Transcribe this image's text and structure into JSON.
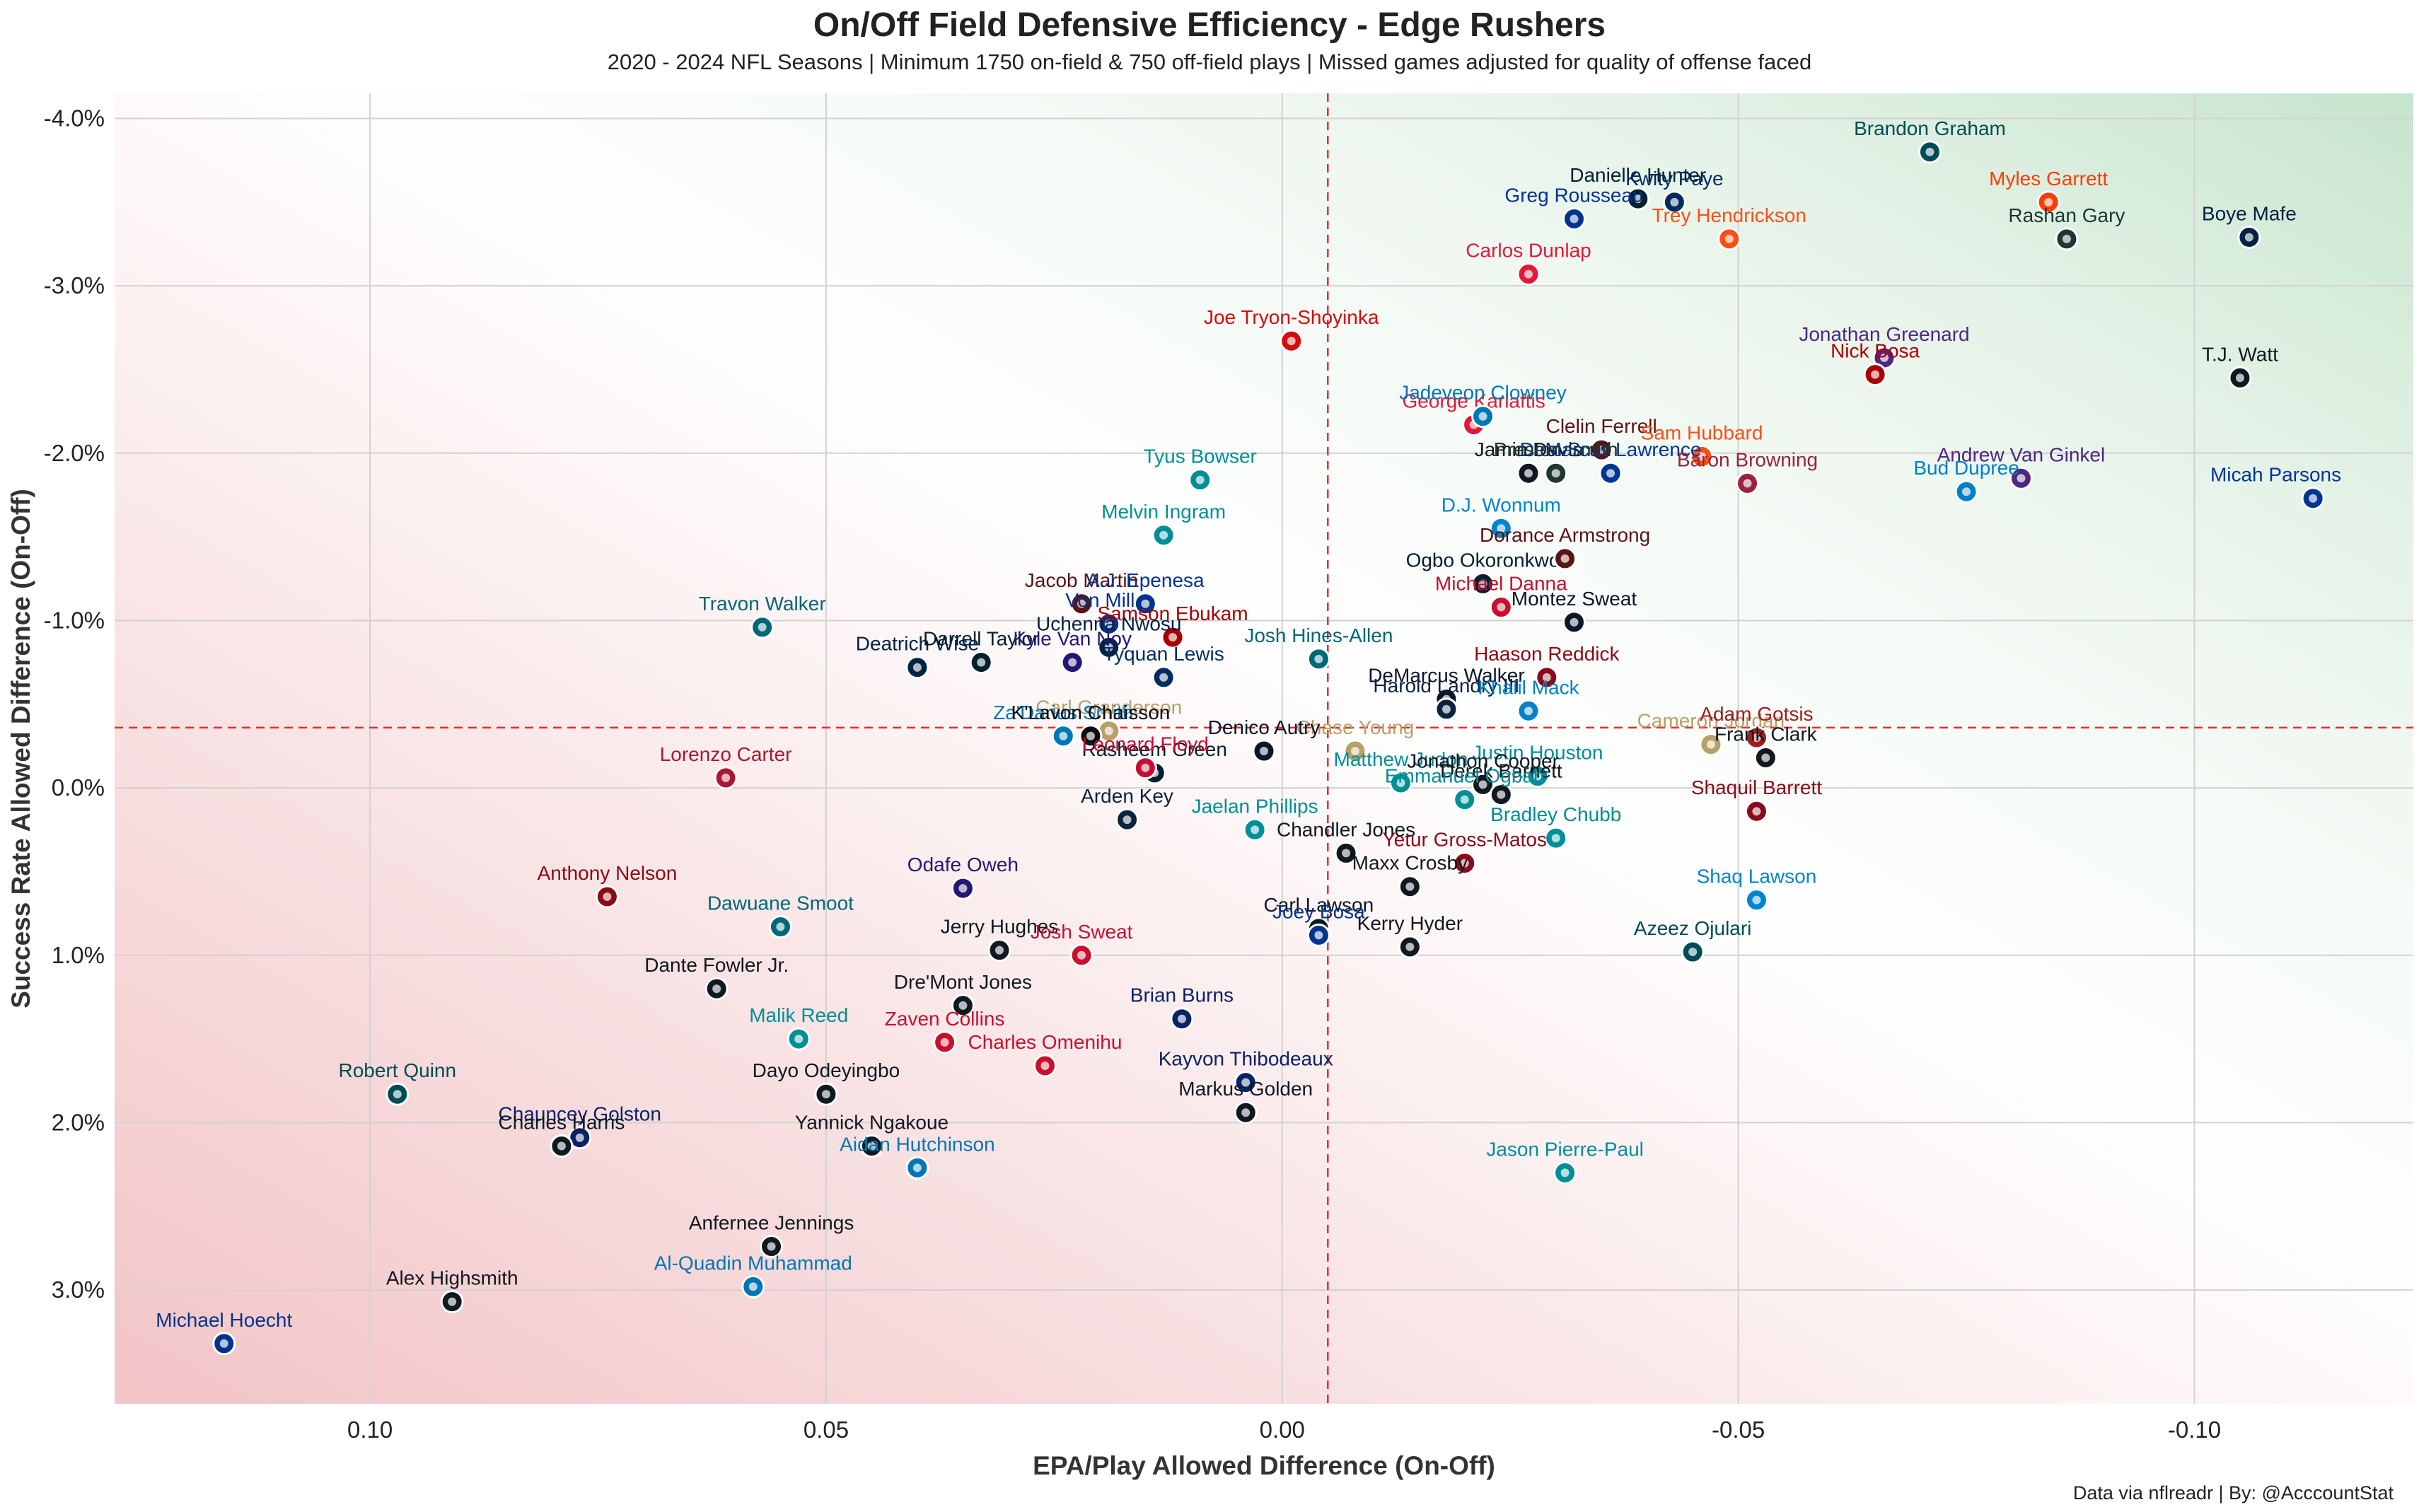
{
  "title": "On/Off Field Defensive Efficiency - Edge Rushers",
  "subtitle": "2020 - 2024 NFL Seasons | Minimum 1750 on-field & 750 off-field plays | Missed games adjusted for quality of offense faced",
  "credit": "Data via nflreadr | By: @AcccountStat",
  "chart_data": {
    "type": "scatter",
    "xlabel": "EPA/Play Allowed Difference (On-Off)",
    "ylabel": "Success Rate Allowed Difference (On-Off)",
    "xlim": [
      0.128,
      -0.124
    ],
    "ylim": [
      3.68,
      -4.15
    ],
    "x_ticks": [
      {
        "value": 0.1,
        "label": "0.10"
      },
      {
        "value": 0.05,
        "label": "0.05"
      },
      {
        "value": 0.0,
        "label": "0.00"
      },
      {
        "value": -0.05,
        "label": "-0.05"
      },
      {
        "value": -0.1,
        "label": "-0.10"
      }
    ],
    "y_ticks": [
      {
        "value": -4.0,
        "label": "-4.0%"
      },
      {
        "value": -3.0,
        "label": "-3.0%"
      },
      {
        "value": -2.0,
        "label": "-2.0%"
      },
      {
        "value": -1.0,
        "label": "-1.0%"
      },
      {
        "value": 0.0,
        "label": "0.0%"
      },
      {
        "value": 1.0,
        "label": "1.0%"
      },
      {
        "value": 2.0,
        "label": "2.0%"
      },
      {
        "value": 3.0,
        "label": "3.0%"
      }
    ],
    "reference_lines": {
      "x": -0.005,
      "y": -0.36,
      "color": "#e03030"
    },
    "grid": true,
    "background": "gradient: red bottom-left, green top-right",
    "points": [
      {
        "name": "Brandon Graham",
        "x": -0.071,
        "y": -3.8,
        "color": "#004C54"
      },
      {
        "name": "Myles Garrett",
        "x": -0.084,
        "y": -3.5,
        "color": "#FF3C00"
      },
      {
        "name": "Boye Mafe",
        "x": -0.106,
        "y": -3.29,
        "color": "#002244"
      },
      {
        "name": "Rashan Gary",
        "x": -0.086,
        "y": -3.28,
        "color": "#203731"
      },
      {
        "name": "Danielle Hunter",
        "x": -0.039,
        "y": -3.52,
        "color": "#03202F"
      },
      {
        "name": "Kwity Paye",
        "x": -0.043,
        "y": -3.5,
        "color": "#002C5F"
      },
      {
        "name": "Greg Rousseau",
        "x": -0.032,
        "y": -3.4,
        "color": "#00338D"
      },
      {
        "name": "Trey Hendrickson",
        "x": -0.049,
        "y": -3.28,
        "color": "#FB4F14"
      },
      {
        "name": "Carlos Dunlap",
        "x": -0.027,
        "y": -3.07,
        "color": "#E31837"
      },
      {
        "name": "Joe Tryon-Shoyinka",
        "x": -0.001,
        "y": -2.67,
        "color": "#D50A0A"
      },
      {
        "name": "Jonathan Greenard",
        "x": -0.066,
        "y": -2.57,
        "color": "#4F2683"
      },
      {
        "name": "Nick Bosa",
        "x": -0.065,
        "y": -2.47,
        "color": "#AA0000"
      },
      {
        "name": "T.J. Watt",
        "x": -0.105,
        "y": -2.45,
        "color": "#101820"
      },
      {
        "name": "George Karlaftis",
        "x": -0.021,
        "y": -2.17,
        "color": "#E31837"
      },
      {
        "name": "Jadeveon Clowney",
        "x": -0.022,
        "y": -2.22,
        "color": "#0076B6"
      },
      {
        "name": "Clelin Ferrell",
        "x": -0.035,
        "y": -2.02,
        "color": "#5A1414"
      },
      {
        "name": "Sam Hubbard",
        "x": -0.046,
        "y": -1.98,
        "color": "#FB4F14"
      },
      {
        "name": "Jamin Davis",
        "x": -0.027,
        "y": -1.88,
        "color": "#101820"
      },
      {
        "name": "Tyus Bowser",
        "x": 0.009,
        "y": -1.84,
        "color": "#008E97"
      },
      {
        "name": "DeMarcus Lawrence",
        "x": -0.036,
        "y": -1.88,
        "color": "#003594"
      },
      {
        "name": "Baron Browning",
        "x": -0.051,
        "y": -1.82,
        "color": "#97233F"
      },
      {
        "name": "Andrew Van Ginkel",
        "x": -0.081,
        "y": -1.85,
        "color": "#4F2683"
      },
      {
        "name": "Bud Dupree",
        "x": -0.075,
        "y": -1.77,
        "color": "#0080C6"
      },
      {
        "name": "Micah Parsons",
        "x": -0.113,
        "y": -1.73,
        "color": "#003594"
      },
      {
        "name": "Preston Smith",
        "x": -0.03,
        "y": -1.88,
        "color": "#203731"
      },
      {
        "name": "D.J. Wonnum",
        "x": -0.024,
        "y": -1.55,
        "color": "#0085CA"
      },
      {
        "name": "Melvin Ingram",
        "x": 0.013,
        "y": -1.51,
        "color": "#008E97"
      },
      {
        "name": "Ogbo Okoronkwo",
        "x": -0.022,
        "y": -1.22,
        "color": "#03202F"
      },
      {
        "name": "Dorance Armstrong",
        "x": -0.031,
        "y": -1.37,
        "color": "#5A1414"
      },
      {
        "name": "Jacob Martin",
        "x": 0.022,
        "y": -1.1,
        "color": "#5A1414"
      },
      {
        "name": "Von Miller",
        "x": 0.019,
        "y": -0.98,
        "color": "#00338D"
      },
      {
        "name": "A.J. Epenesa",
        "x": 0.015,
        "y": -1.1,
        "color": "#00338D"
      },
      {
        "name": "Michael Danna",
        "x": -0.024,
        "y": -1.08,
        "color": "#C8102E"
      },
      {
        "name": "Montez Sweat",
        "x": -0.032,
        "y": -0.99,
        "color": "#0B162A"
      },
      {
        "name": "Travon Walker",
        "x": 0.057,
        "y": -0.96,
        "color": "#006778"
      },
      {
        "name": "Samson Ebukam",
        "x": 0.012,
        "y": -0.9,
        "color": "#AA0000"
      },
      {
        "name": "Josh Hines-Allen",
        "x": -0.004,
        "y": -0.77,
        "color": "#006778"
      },
      {
        "name": "Darrell Taylor",
        "x": 0.033,
        "y": -0.75,
        "color": "#03202F"
      },
      {
        "name": "Uchenna Nwosu",
        "x": 0.019,
        "y": -0.84,
        "color": "#002244"
      },
      {
        "name": "Deatrich Wise",
        "x": 0.04,
        "y": -0.72,
        "color": "#002244"
      },
      {
        "name": "Kyle Van Noy",
        "x": 0.023,
        "y": -0.75,
        "color": "#241773"
      },
      {
        "name": "Tyquan Lewis",
        "x": 0.013,
        "y": -0.66,
        "color": "#002C5F"
      },
      {
        "name": "DeMarcus Walker",
        "x": -0.018,
        "y": -0.53,
        "color": "#0B162A"
      },
      {
        "name": "Haason Reddick",
        "x": -0.029,
        "y": -0.66,
        "color": "#8B0A19"
      },
      {
        "name": "Harold Landry III",
        "x": -0.018,
        "y": -0.47,
        "color": "#0C2340"
      },
      {
        "name": "Khalil Mack",
        "x": -0.027,
        "y": -0.46,
        "color": "#0080C6"
      },
      {
        "name": "Carl Granderson",
        "x": 0.019,
        "y": -0.34,
        "color": "#B8A06A"
      },
      {
        "name": "Za'Darius Smith",
        "x": 0.024,
        "y": -0.31,
        "color": "#0076B6"
      },
      {
        "name": "Cameron Jordan",
        "x": -0.047,
        "y": -0.26,
        "color": "#B8A06A"
      },
      {
        "name": "Chase Young",
        "x": -0.008,
        "y": -0.22,
        "color": "#B8A06A"
      },
      {
        "name": "Adam Gotsis",
        "x": -0.052,
        "y": -0.3,
        "color": "#9F1D1D"
      },
      {
        "name": "K'Lavon Chaisson",
        "x": 0.021,
        "y": -0.31,
        "color": "#0B0B0B"
      },
      {
        "name": "Denico Autry",
        "x": 0.002,
        "y": -0.22,
        "color": "#0B162A"
      },
      {
        "name": "Justin Houston",
        "x": -0.028,
        "y": -0.07,
        "color": "#008E97"
      },
      {
        "name": "Frank Clark",
        "x": -0.053,
        "y": -0.18,
        "color": "#101820"
      },
      {
        "name": "Lorenzo Carter",
        "x": 0.061,
        "y": -0.06,
        "color": "#A71930"
      },
      {
        "name": "Matthew Judon",
        "x": -0.013,
        "y": -0.03,
        "color": "#008E97"
      },
      {
        "name": "Rasheem Green",
        "x": 0.014,
        "y": -0.09,
        "color": "#03202F"
      },
      {
        "name": "Leonard Floyd",
        "x": 0.015,
        "y": -0.12,
        "color": "#C60C30"
      },
      {
        "name": "Jonathon Cooper",
        "x": -0.022,
        "y": -0.02,
        "color": "#101820"
      },
      {
        "name": "Derek Barnett",
        "x": -0.024,
        "y": 0.04,
        "color": "#101820"
      },
      {
        "name": "Shaquil Barrett",
        "x": -0.052,
        "y": 0.14,
        "color": "#8B0A19"
      },
      {
        "name": "Arden Key",
        "x": 0.017,
        "y": 0.19,
        "color": "#0C2340"
      },
      {
        "name": "Emmanuel Ogbah",
        "x": -0.02,
        "y": 0.07,
        "color": "#008E97"
      },
      {
        "name": "Jaelan Phillips",
        "x": 0.003,
        "y": 0.25,
        "color": "#008E97"
      },
      {
        "name": "Bradley Chubb",
        "x": -0.03,
        "y": 0.3,
        "color": "#008E97"
      },
      {
        "name": "Chandler Jones",
        "x": -0.007,
        "y": 0.39,
        "color": "#101820"
      },
      {
        "name": "Yetur Gross-Matos",
        "x": -0.02,
        "y": 0.45,
        "color": "#8B0A19"
      },
      {
        "name": "Maxx Crosby",
        "x": -0.014,
        "y": 0.59,
        "color": "#101820"
      },
      {
        "name": "Shaq Lawson",
        "x": -0.052,
        "y": 0.67,
        "color": "#0085CA"
      },
      {
        "name": "Anthony Nelson",
        "x": 0.074,
        "y": 0.65,
        "color": "#8B0A19"
      },
      {
        "name": "Dawuane Smoot",
        "x": 0.055,
        "y": 0.83,
        "color": "#006778"
      },
      {
        "name": "Odafe Oweh",
        "x": 0.035,
        "y": 0.6,
        "color": "#241773"
      },
      {
        "name": "Jerry Hughes",
        "x": 0.031,
        "y": 0.97,
        "color": "#101820"
      },
      {
        "name": "Josh Sweat",
        "x": 0.022,
        "y": 1.0,
        "color": "#C8102E"
      },
      {
        "name": "Carl Lawson",
        "x": -0.004,
        "y": 0.84,
        "color": "#101820"
      },
      {
        "name": "Joey Bosa",
        "x": -0.004,
        "y": 0.88,
        "color": "#00338D"
      },
      {
        "name": "Kerry Hyder",
        "x": -0.014,
        "y": 0.95,
        "color": "#101820"
      },
      {
        "name": "Azeez Ojulari",
        "x": -0.045,
        "y": 0.98,
        "color": "#004C54"
      },
      {
        "name": "Dante Fowler Jr.",
        "x": 0.062,
        "y": 1.2,
        "color": "#101820"
      },
      {
        "name": "Dre'Mont Jones",
        "x": 0.035,
        "y": 1.3,
        "color": "#101820"
      },
      {
        "name": "Malik Reed",
        "x": 0.053,
        "y": 1.5,
        "color": "#008E97"
      },
      {
        "name": "Zaven Collins",
        "x": 0.037,
        "y": 1.52,
        "color": "#C8102E"
      },
      {
        "name": "Brian Burns",
        "x": 0.011,
        "y": 1.38,
        "color": "#0B2265"
      },
      {
        "name": "Charles Omenihu",
        "x": 0.026,
        "y": 1.66,
        "color": "#C8102E"
      },
      {
        "name": "Kayvon Thibodeaux",
        "x": 0.004,
        "y": 1.76,
        "color": "#0B2265"
      },
      {
        "name": "Robert Quinn",
        "x": 0.097,
        "y": 1.83,
        "color": "#004C54"
      },
      {
        "name": "Dayo Odeyingbo",
        "x": 0.05,
        "y": 1.83,
        "color": "#101820"
      },
      {
        "name": "Markus Golden",
        "x": 0.004,
        "y": 1.94,
        "color": "#101820"
      },
      {
        "name": "Chauncey Golston",
        "x": 0.077,
        "y": 2.09,
        "color": "#0B2265"
      },
      {
        "name": "Charles Harris",
        "x": 0.079,
        "y": 2.14,
        "color": "#101820"
      },
      {
        "name": "Yannick Ngakoue",
        "x": 0.045,
        "y": 2.14,
        "color": "#101820"
      },
      {
        "name": "Aidan Hutchinson",
        "x": 0.04,
        "y": 2.27,
        "color": "#0076B6"
      },
      {
        "name": "Jason Pierre-Paul",
        "x": -0.031,
        "y": 2.3,
        "color": "#008E97"
      },
      {
        "name": "Anfernee Jennings",
        "x": 0.056,
        "y": 2.74,
        "color": "#101820"
      },
      {
        "name": "Al-Quadin Muhammad",
        "x": 0.058,
        "y": 2.98,
        "color": "#0076B6"
      },
      {
        "name": "Alex Highsmith",
        "x": 0.091,
        "y": 3.07,
        "color": "#101820"
      },
      {
        "name": "Michael Hoecht",
        "x": 0.116,
        "y": 3.32,
        "color": "#00338D"
      }
    ]
  }
}
